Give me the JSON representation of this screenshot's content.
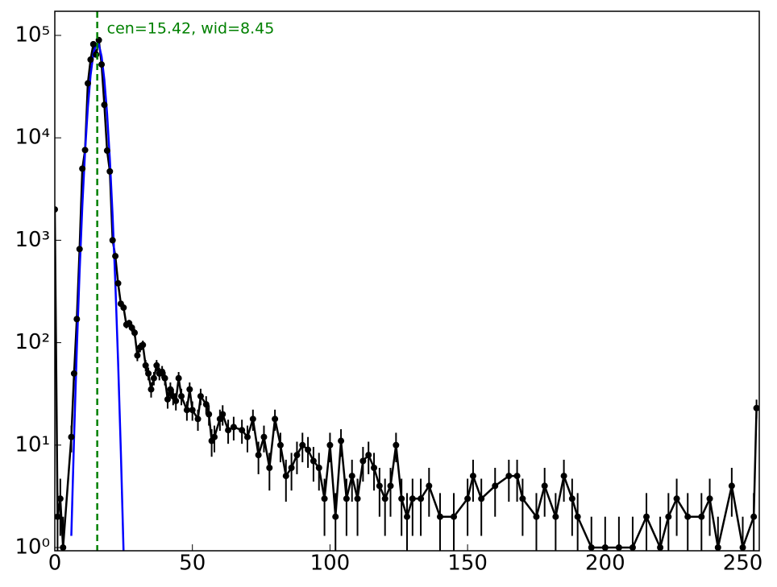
{
  "chart_data": {
    "type": "errorbar",
    "x": [
      0,
      1,
      2,
      3,
      6,
      7,
      8,
      9,
      10,
      11,
      12,
      13,
      14,
      15,
      16,
      17,
      18,
      19,
      20,
      21,
      22,
      23,
      24,
      25,
      26,
      27,
      28,
      29,
      30,
      31,
      32,
      33,
      34,
      35,
      36,
      37,
      38,
      39,
      40,
      41,
      42,
      43,
      44,
      45,
      46,
      48,
      49,
      50,
      52,
      53,
      55,
      56,
      57,
      58,
      60,
      61,
      63,
      65,
      68,
      70,
      72,
      74,
      76,
      78,
      80,
      82,
      84,
      86,
      88,
      90,
      92,
      94,
      96,
      98,
      100,
      102,
      104,
      106,
      108,
      110,
      112,
      114,
      116,
      118,
      120,
      122,
      124,
      126,
      128,
      130,
      133,
      136,
      140,
      145,
      150,
      152,
      155,
      160,
      165,
      168,
      170,
      175,
      178,
      182,
      185,
      188,
      190,
      195,
      200,
      205,
      210,
      215,
      220,
      223,
      226,
      230,
      235,
      238,
      241,
      246,
      250,
      254,
      255
    ],
    "series": [
      {
        "color": "#000000",
        "values": [
          2000,
          2,
          3,
          1,
          12,
          50,
          170,
          820,
          5000,
          7600,
          34000,
          58000,
          82000,
          65000,
          90000,
          52000,
          21000,
          7500,
          4700,
          1000,
          700,
          380,
          240,
          220,
          150,
          155,
          140,
          125,
          75,
          90,
          95,
          60,
          50,
          35,
          45,
          60,
          50,
          52,
          45,
          28,
          35,
          30,
          27,
          45,
          30,
          22,
          35,
          22,
          18,
          30,
          25,
          20,
          11,
          12,
          18,
          20,
          14,
          15,
          14,
          12,
          18,
          8,
          12,
          6,
          18,
          10,
          5,
          6,
          8,
          10,
          9,
          7,
          6,
          3,
          10,
          2,
          11,
          3,
          5,
          3,
          7,
          8,
          6,
          4,
          3,
          4,
          10,
          3,
          2,
          3,
          3,
          4,
          2,
          2,
          3,
          5,
          3,
          4,
          5,
          5,
          3,
          2,
          4,
          2,
          5,
          3,
          2,
          1,
          1,
          1,
          1,
          2,
          1,
          2,
          3,
          2,
          2,
          3,
          1,
          4,
          1,
          2,
          23
        ],
        "errors": [
          45,
          1.4,
          1.7,
          1,
          3.5,
          7,
          13,
          29,
          71,
          87,
          184,
          241,
          286,
          255,
          300,
          228,
          145,
          87,
          69,
          32,
          26,
          19,
          15,
          15,
          12,
          12,
          12,
          11,
          9,
          9.5,
          9.7,
          7.7,
          7.1,
          5.9,
          6.7,
          7.7,
          7.1,
          7.2,
          6.7,
          5.3,
          5.9,
          5.5,
          5.2,
          6.7,
          5.5,
          4.7,
          5.9,
          4.7,
          4.2,
          5.5,
          5,
          4.5,
          3.3,
          3.5,
          4.2,
          4.5,
          3.7,
          3.9,
          3.7,
          3.5,
          4.2,
          2.8,
          3.5,
          2.4,
          4.2,
          3.2,
          2.2,
          2.4,
          2.8,
          3.2,
          3,
          2.6,
          2.4,
          1.7,
          3.2,
          1.4,
          3.3,
          1.7,
          2.2,
          1.7,
          2.6,
          2.8,
          2.4,
          2,
          1.7,
          2,
          3.2,
          1.7,
          1.4,
          1.7,
          1.7,
          2,
          1.4,
          1.4,
          1.7,
          2.2,
          1.7,
          2,
          2.2,
          2.2,
          1.7,
          1.4,
          2,
          1.4,
          2.2,
          1.7,
          1.4,
          1,
          1,
          1,
          1,
          1.4,
          1,
          1.4,
          1.7,
          1.4,
          1.4,
          1.7,
          1,
          2,
          1,
          1.4,
          4.8
        ]
      },
      {
        "color": "#0000ff",
        "x": [
          6,
          7,
          8,
          9,
          10,
          11,
          12,
          13,
          14,
          15,
          16,
          17,
          18,
          19,
          20,
          21,
          22,
          23,
          24,
          25
        ],
        "values": [
          1.3,
          12,
          87,
          490,
          2160,
          7400,
          19700,
          40900,
          66000,
          83100,
          81500,
          62200,
          37000,
          17200,
          6200,
          1740,
          380,
          65,
          8.6,
          0.88
        ]
      }
    ],
    "vline": {
      "x": 15.42,
      "color": "#008000",
      "label": "cen=15.42, wid=8.45"
    },
    "xlim": [
      0,
      256
    ],
    "xticks": [
      0,
      50,
      100,
      150,
      200,
      250
    ],
    "ylim": [
      0.93,
      172000
    ],
    "yscale": "log",
    "yticks": [
      {
        "value": 1,
        "label": "10⁰"
      },
      {
        "value": 10,
        "label": "10¹"
      },
      {
        "value": 100,
        "label": "10²"
      },
      {
        "value": 1000,
        "label": "10³"
      },
      {
        "value": 10000,
        "label": "10⁴"
      },
      {
        "value": 100000,
        "label": "10⁵"
      }
    ]
  }
}
